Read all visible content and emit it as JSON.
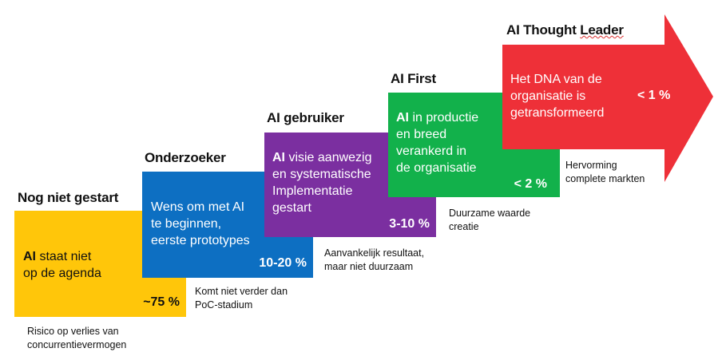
{
  "stages": [
    {
      "title": "Nog niet gestart",
      "bold_lead": "AI",
      "text_line1_rest": " staat niet",
      "text_line2": "op de agenda",
      "percentage": "~75 %",
      "note_line1": "Risico op verlies van",
      "note_line2": "concurrentievermogen",
      "color": "#FFC60A"
    },
    {
      "title": "Onderzoeker",
      "text_line1": "Wens om met AI",
      "text_line2": "te beginnen,",
      "text_line3": "eerste prototypes",
      "percentage": "10-20 %",
      "note_line1": "Komt niet verder dan",
      "note_line2": "PoC-stadium",
      "color": "#0D6FC2"
    },
    {
      "title": "AI gebruiker",
      "bold_lead": "AI",
      "text_line1_rest": " visie aanwezig",
      "text_line2": "en systematische",
      "text_line3": "Implementatie",
      "text_line4": "gestart",
      "percentage": "3-10 %",
      "note_line1": "Aanvankelijk resultaat,",
      "note_line2": "maar niet duurzaam",
      "color": "#7B2FA0"
    },
    {
      "title": "AI First",
      "bold_lead": "AI",
      "text_line1_rest": " in productie",
      "text_line2": "en breed",
      "text_line3": "verankerd in",
      "text_line4": "de organisatie",
      "percentage": "< 2 %",
      "note_line1": "Duurzame waarde",
      "note_line2": "creatie",
      "color": "#12B14B"
    },
    {
      "title_part1": "AI Thought ",
      "title_part2": "Leader",
      "text_line1": "Het DNA van de",
      "text_line2": "organisatie is",
      "text_line3": "getransformeerd",
      "percentage": "< 1 %",
      "note_line1": "Hervorming",
      "note_line2": "complete markten",
      "color": "#EE3038"
    }
  ]
}
